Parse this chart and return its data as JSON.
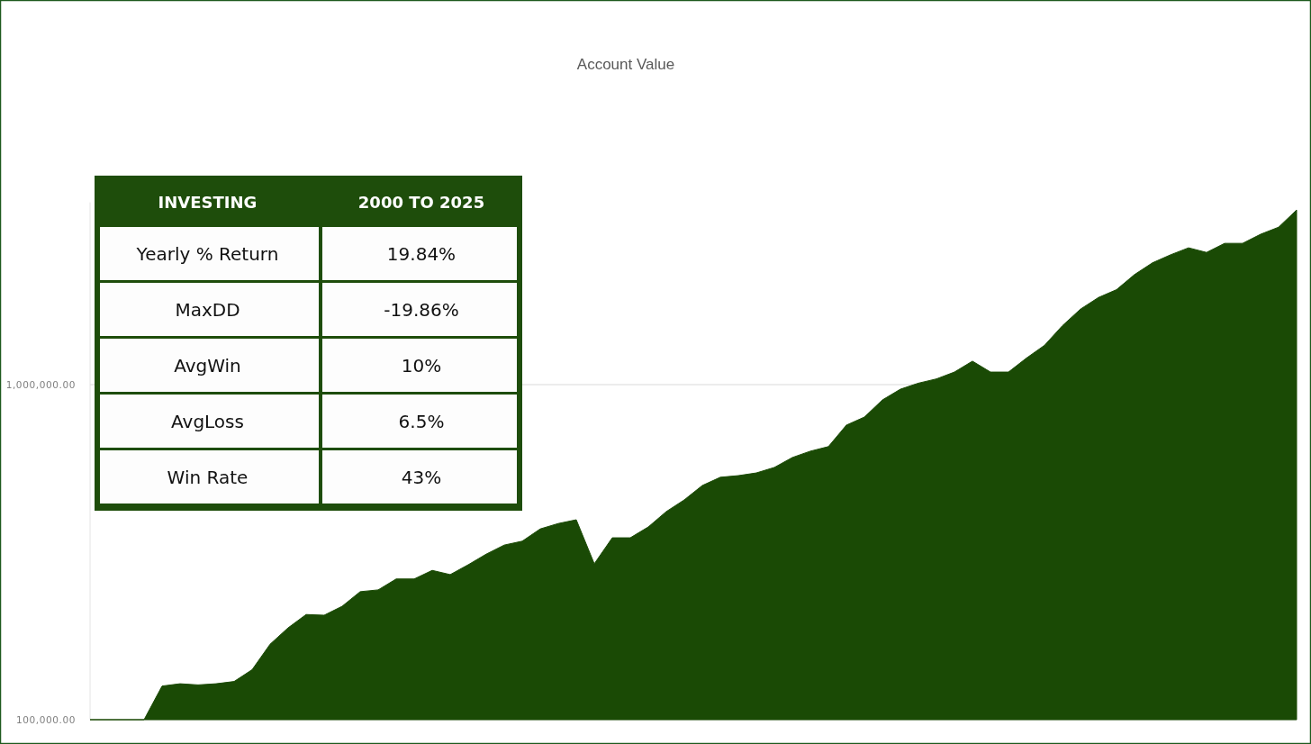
{
  "chart_data": [
    {
      "type": "area",
      "title": "Account Value",
      "log": true,
      "grid": "y",
      "categories": [
        null,
        null,
        null,
        null,
        null,
        null,
        null,
        null,
        null,
        null,
        null,
        null,
        null,
        null,
        null,
        null,
        null,
        null,
        null,
        null,
        null,
        null,
        null,
        null,
        null,
        null,
        null,
        null,
        null,
        null,
        null,
        null,
        null,
        null,
        null,
        null,
        null,
        null,
        null,
        null,
        null,
        null,
        null,
        null,
        null,
        null,
        null,
        null,
        null,
        null,
        null,
        null,
        null,
        null,
        null,
        null,
        null,
        null,
        null,
        null,
        null,
        null,
        null,
        null,
        null,
        null,
        null,
        null
      ],
      "ylim": [
        100000,
        3500000
      ],
      "series": [
        {
          "color": "#1a4a05",
          "values": [
            100000,
            100000,
            100000,
            100000,
            126000,
            128000,
            127000,
            128000,
            130000,
            141000,
            168000,
            188000,
            206000,
            205000,
            218000,
            241000,
            244000,
            263000,
            263000,
            279000,
            271000,
            290000,
            312000,
            332000,
            341000,
            371000,
            385000,
            395000,
            292000,
            349000,
            349000,
            376000,
            418000,
            453000,
            500000,
            529000,
            535000,
            545000,
            566000,
            606000,
            633000,
            653000,
            757000,
            800000,
            900000,
            969000,
            1010000,
            1040000,
            1090000,
            1175000,
            1090000,
            1090000,
            1200000,
            1310000,
            1500000,
            1680000,
            1820000,
            1920000,
            2130000,
            2310000,
            2440000,
            2560000,
            2480000,
            2640000,
            2640000,
            2810000,
            2950000,
            3320000
          ]
        }
      ],
      "yticks": [
        {
          "value": 100000,
          "label": "100,000.00"
        },
        {
          "value": 1000000,
          "label": "1,000,000.00"
        }
      ]
    },
    {
      "type": "other",
      "title": "INVESTING",
      "subtitle": "2000 TO 2025",
      "annotations": [
        "Yearly % Return",
        "19.84%",
        "MaxDD",
        "-19.86%",
        "AvgWin",
        "10%",
        "AvgLoss",
        "6.5%",
        "Win Rate",
        "43%"
      ]
    }
  ]
}
